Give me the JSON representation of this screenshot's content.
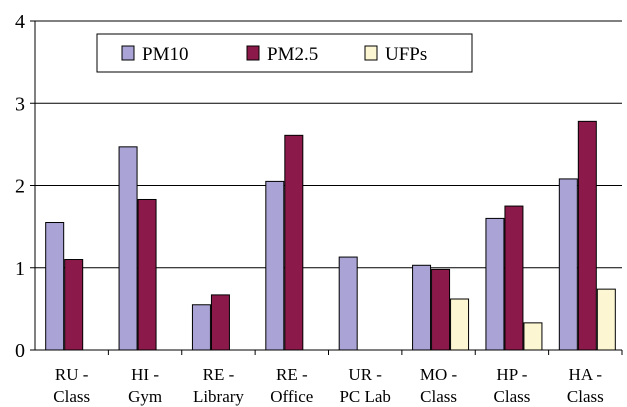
{
  "chart_data": {
    "type": "bar",
    "categories": [
      [
        "RU -",
        "Class"
      ],
      [
        "HI -",
        "Gym"
      ],
      [
        "RE -",
        "Library"
      ],
      [
        "RE -",
        "Office"
      ],
      [
        "UR -",
        "PC Lab"
      ],
      [
        "MO -",
        "Class"
      ],
      [
        "HP -",
        "Class"
      ],
      [
        "HA -",
        "Class"
      ]
    ],
    "series": [
      {
        "name": "PM10",
        "color": "#a9a3d6",
        "values": [
          1.55,
          2.47,
          0.55,
          2.05,
          1.13,
          1.03,
          1.6,
          2.08
        ]
      },
      {
        "name": "PM2.5",
        "color": "#8b1a4a",
        "values": [
          1.1,
          1.83,
          0.67,
          2.61,
          0,
          0.98,
          1.75,
          2.78
        ]
      },
      {
        "name": "UFPs",
        "color": "#fcf6d2",
        "values": [
          0,
          0,
          0,
          0,
          0,
          0.62,
          0.33,
          0.74
        ]
      }
    ],
    "ylim": [
      0,
      4
    ],
    "yticks": [
      0,
      1,
      2,
      3,
      4
    ],
    "grid": true,
    "legend": "top-center",
    "title": "",
    "xlabel": "",
    "ylabel": ""
  }
}
